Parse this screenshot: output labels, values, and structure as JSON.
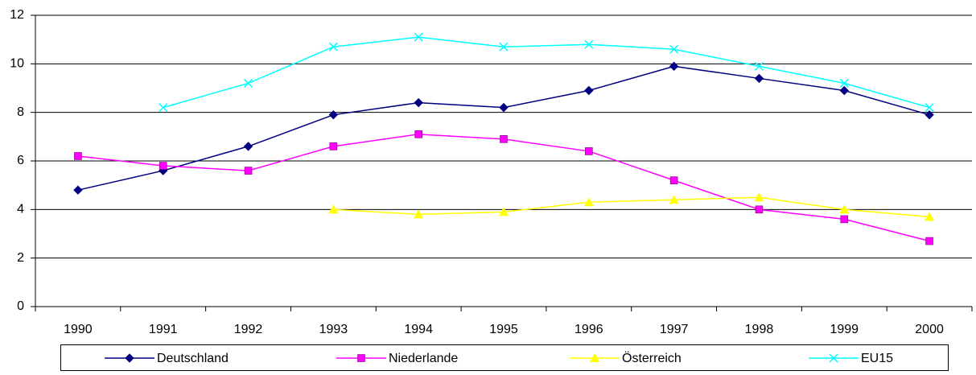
{
  "chart_data": {
    "type": "line",
    "categories": [
      "1990",
      "1991",
      "1992",
      "1993",
      "1994",
      "1995",
      "1996",
      "1997",
      "1998",
      "1999",
      "2000"
    ],
    "series": [
      {
        "name": "Deutschland",
        "color": "#000080",
        "marker": "diamond",
        "values": [
          4.8,
          5.6,
          6.6,
          7.9,
          8.4,
          8.2,
          8.9,
          9.9,
          9.4,
          8.9,
          7.9
        ]
      },
      {
        "name": "Niederlande",
        "color": "#ff00ff",
        "marker": "square",
        "values": [
          6.2,
          5.8,
          5.6,
          6.6,
          7.1,
          6.9,
          6.4,
          5.2,
          4.0,
          3.6,
          2.7
        ]
      },
      {
        "name": "Österreich",
        "color": "#ffff00",
        "marker": "triangle",
        "values": [
          null,
          null,
          null,
          4.0,
          3.8,
          3.9,
          4.3,
          4.4,
          4.5,
          4.0,
          3.7
        ]
      },
      {
        "name": "EU15",
        "color": "#00ffff",
        "marker": "x",
        "values": [
          null,
          8.2,
          9.2,
          10.7,
          11.1,
          10.7,
          10.8,
          10.6,
          9.9,
          9.2,
          8.2
        ]
      }
    ],
    "ylim": [
      0,
      12
    ],
    "yticks": [
      0,
      2,
      4,
      6,
      8,
      10,
      12
    ],
    "grid": true,
    "legend": "bottom"
  }
}
